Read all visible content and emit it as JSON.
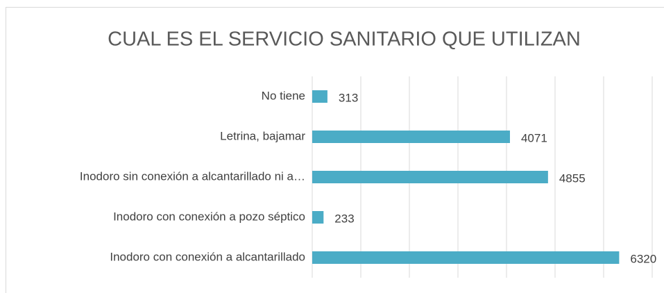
{
  "chart_data": {
    "type": "bar",
    "orientation": "horizontal",
    "title": "CUAL ES EL SERVICIO SANITARIO QUE UTILIZAN",
    "categories": [
      "No tiene",
      "Letrina, bajamar",
      "Inodoro sin conexión a alcantarillado ni a…",
      "Inodoro con conexión a pozo séptico",
      "Inodoro con conexión a alcantarillado"
    ],
    "values": [
      313,
      4071,
      4855,
      233,
      6320
    ],
    "color": "#4bacc6",
    "xlim": [
      0,
      7000
    ],
    "xticks": [
      0,
      1000,
      2000,
      3000,
      4000,
      5000,
      6000,
      7000
    ],
    "grid": true
  }
}
